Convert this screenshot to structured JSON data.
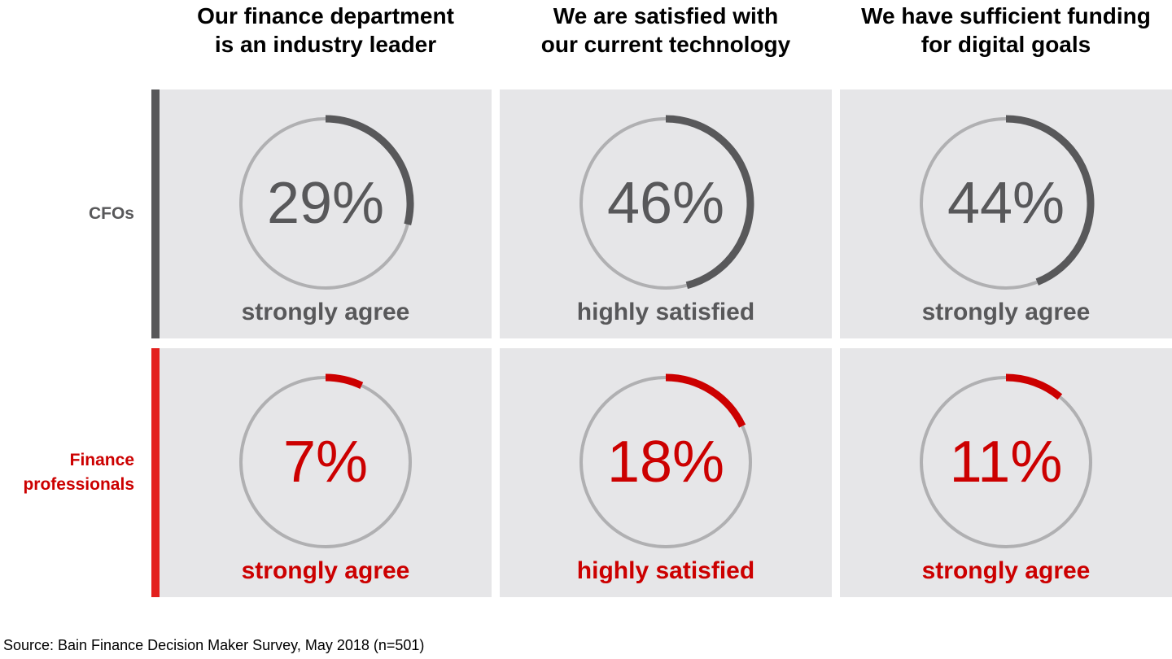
{
  "colors": {
    "cfo": "#58585a",
    "fin": "#cc0000",
    "finbar": "#e3201e",
    "ring": "#b0b0b2",
    "panel": "#e6e6e8"
  },
  "chart_data": {
    "type": "donut-grid",
    "columns": [
      "Our finance department is an industry leader",
      "We are satisfied with our current technology",
      "We have sufficient funding for digital goals"
    ],
    "rows": [
      {
        "name": "CFOs",
        "values": [
          29,
          46,
          44
        ],
        "labels": [
          "29%",
          "46%",
          "44%"
        ],
        "captions": [
          "strongly agree",
          "highly satisfied",
          "strongly agree"
        ]
      },
      {
        "name": "Finance professionals",
        "values": [
          7,
          18,
          11
        ],
        "labels": [
          "7%",
          "18%",
          "11%"
        ],
        "captions": [
          "strongly agree",
          "highly satisfied",
          "strongly agree"
        ]
      }
    ],
    "unit": "%"
  },
  "headers": [
    [
      "Our finance department",
      "is an industry leader"
    ],
    [
      "We are satisfied with",
      "our current technology"
    ],
    [
      "We have sufficient funding",
      "for digital goals"
    ]
  ],
  "row_labels": [
    [
      "CFOs"
    ],
    [
      "Finance",
      "professionals"
    ]
  ],
  "source": "Source: Bain Finance Decision Maker Survey, May 2018 (n=501)"
}
